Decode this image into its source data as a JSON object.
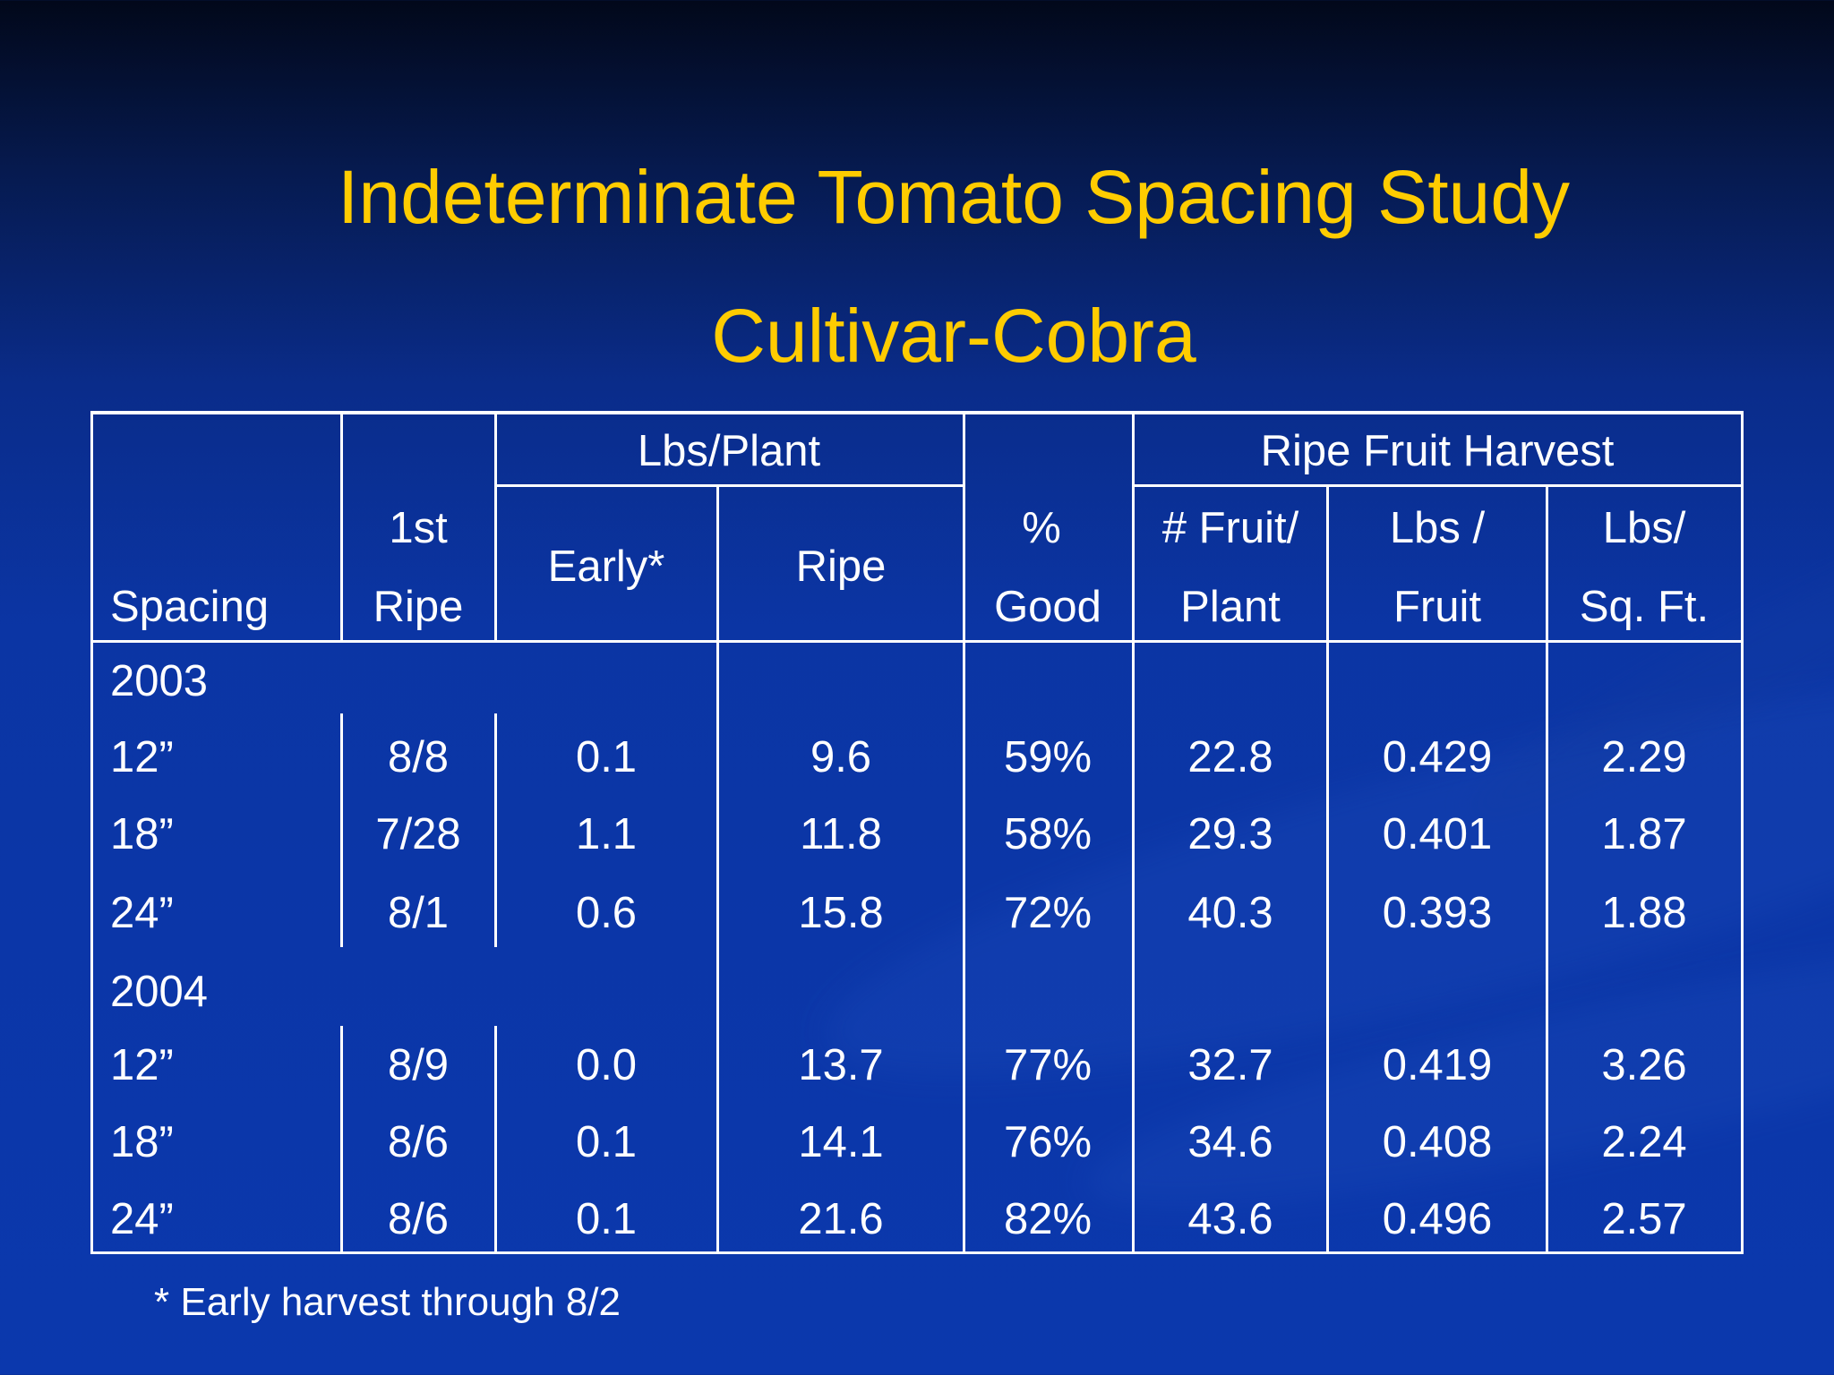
{
  "slide": {
    "title": "Indeterminate Tomato Spacing Study",
    "subtitle": "Cultivar-Cobra",
    "footnote": "* Early harvest through 8/2",
    "colors": {
      "title": "#ffcc00",
      "background": "#0b38ad",
      "text": "#ffffff"
    }
  },
  "table": {
    "group_headers": {
      "lbs_plant": "Lbs/Plant",
      "ripe_fruit_harvest": "Ripe Fruit Harvest"
    },
    "column_headers": {
      "spacing": "Spacing",
      "first_ripe_1": "1st",
      "first_ripe_2": "Ripe",
      "early": "Early*",
      "ripe": "Ripe",
      "good_1": "%",
      "good_2": "Good",
      "fruit_plant_1": "# Fruit/",
      "fruit_plant_2": "Plant",
      "lbs_fruit_1": "Lbs /",
      "lbs_fruit_2": "Fruit",
      "lbs_sqft_1": "Lbs/",
      "lbs_sqft_2": "Sq. Ft."
    },
    "years": [
      {
        "year": "2003",
        "rows": [
          {
            "spacing": "12”",
            "first_ripe": "8/8",
            "early": "0.1",
            "ripe": "9.6",
            "good": "59%",
            "fruit_plant": "22.8",
            "lbs_fruit": "0.429",
            "lbs_sqft": "2.29"
          },
          {
            "spacing": "18”",
            "first_ripe": "7/28",
            "early": "1.1",
            "ripe": "11.8",
            "good": "58%",
            "fruit_plant": "29.3",
            "lbs_fruit": "0.401",
            "lbs_sqft": "1.87"
          },
          {
            "spacing": "24”",
            "first_ripe": "8/1",
            "early": "0.6",
            "ripe": "15.8",
            "good": "72%",
            "fruit_plant": "40.3",
            "lbs_fruit": "0.393",
            "lbs_sqft": "1.88"
          }
        ]
      },
      {
        "year": "2004",
        "rows": [
          {
            "spacing": "12”",
            "first_ripe": "8/9",
            "early": "0.0",
            "ripe": "13.7",
            "good": "77%",
            "fruit_plant": "32.7",
            "lbs_fruit": "0.419",
            "lbs_sqft": "3.26"
          },
          {
            "spacing": "18”",
            "first_ripe": "8/6",
            "early": "0.1",
            "ripe": "14.1",
            "good": "76%",
            "fruit_plant": "34.6",
            "lbs_fruit": "0.408",
            "lbs_sqft": "2.24"
          },
          {
            "spacing": "24”",
            "first_ripe": "8/6",
            "early": "0.1",
            "ripe": "21.6",
            "good": "82%",
            "fruit_plant": "43.6",
            "lbs_fruit": "0.496",
            "lbs_sqft": "2.57"
          }
        ]
      }
    ]
  }
}
